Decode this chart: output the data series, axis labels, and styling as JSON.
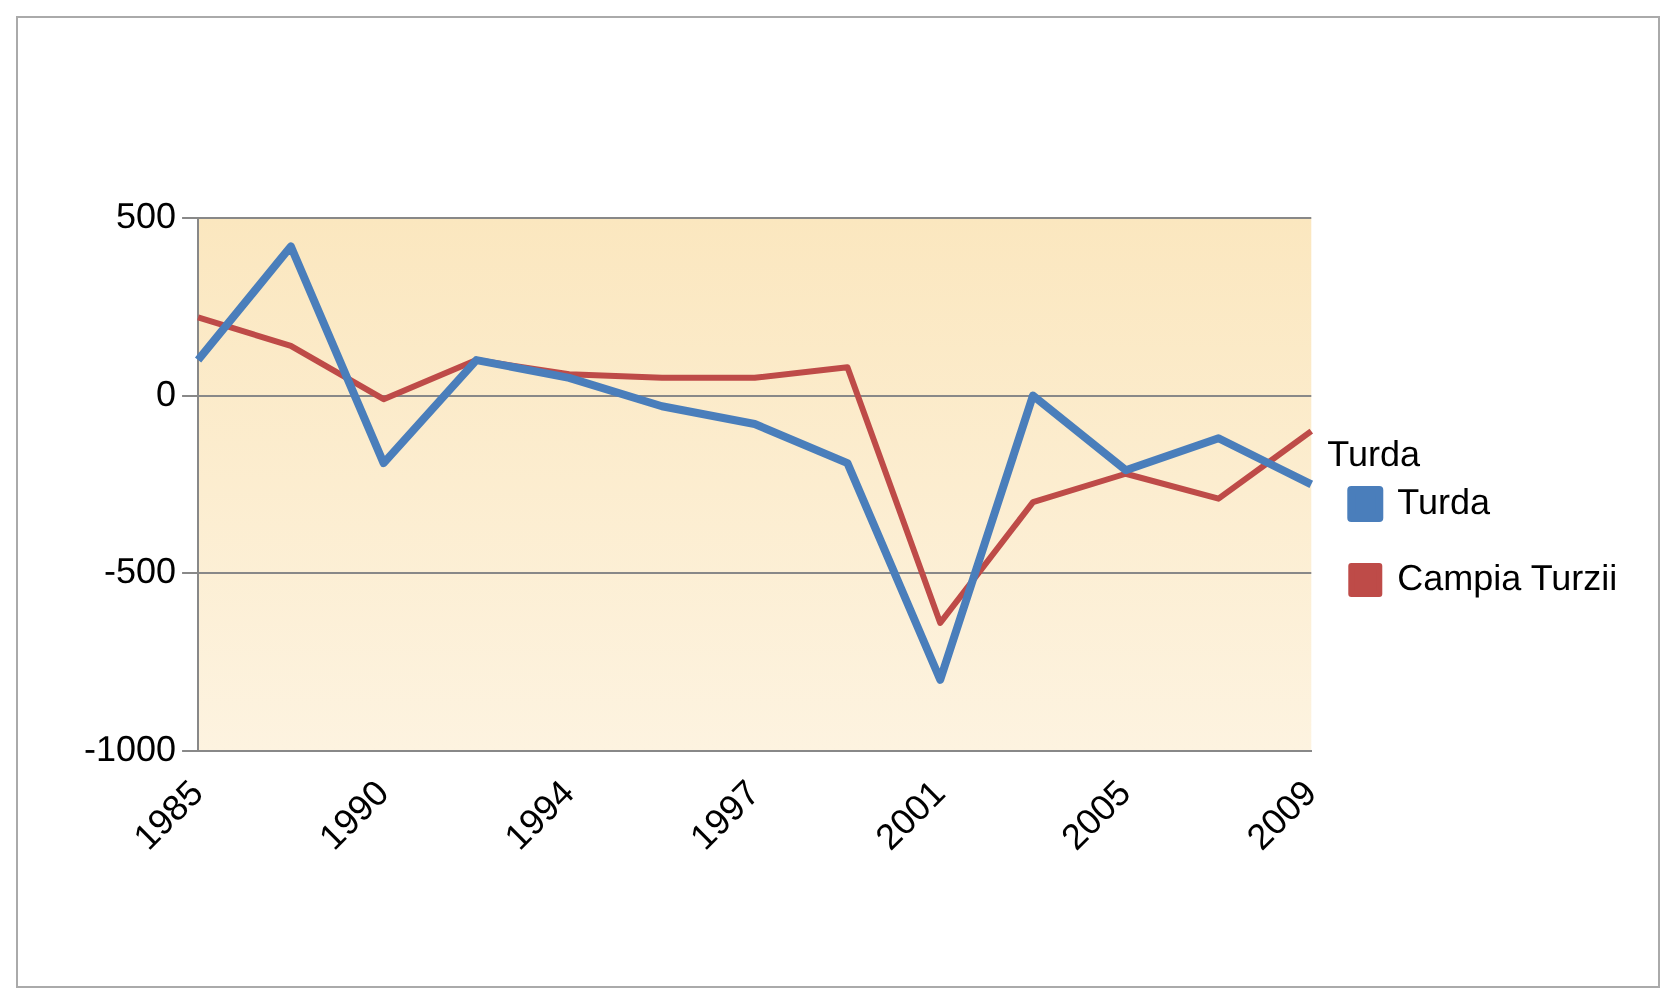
{
  "chart_data": {
    "type": "line",
    "categories": [
      "1985",
      null,
      "1990",
      null,
      "1994",
      null,
      "1997",
      null,
      "2001",
      null,
      "2005",
      null,
      "2009"
    ],
    "series": [
      {
        "name": "Turda",
        "color": "#4a7ebb",
        "values": [
          100,
          420,
          -190,
          100,
          50,
          -30,
          -80,
          -190,
          -800,
          0,
          -210,
          -120,
          -250
        ]
      },
      {
        "name": "Campia Turzii",
        "color": "#be4b48",
        "values": [
          220,
          140,
          -10,
          100,
          60,
          50,
          50,
          80,
          -640,
          -300,
          -220,
          -290,
          -100
        ]
      }
    ],
    "ylim": [
      -1000,
      500
    ],
    "yticks": [
      -1000,
      -500,
      0,
      500
    ],
    "grid": "y",
    "legend": "right",
    "marker": "none",
    "annotations": [
      "Turda"
    ]
  }
}
